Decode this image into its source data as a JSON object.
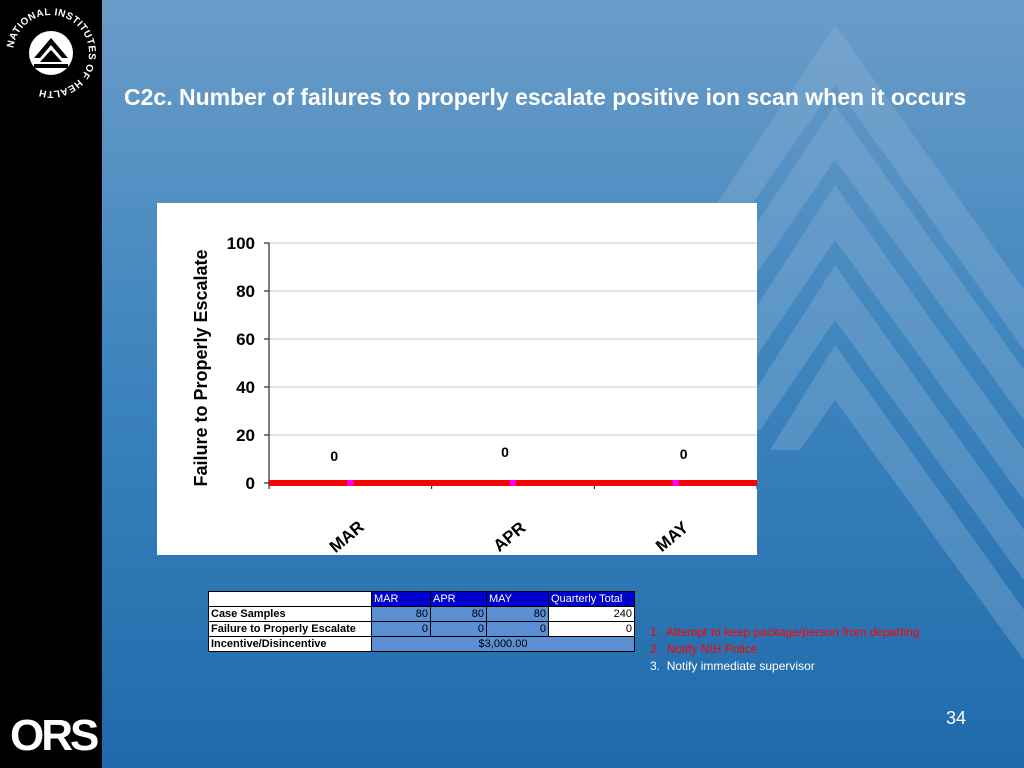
{
  "logo": {
    "nih_text": "NATIONAL INSTITUTES OF HEALTH",
    "ors_text": "ORS"
  },
  "title": "C2c. Number of failures to properly escalate positive ion scan when it occurs",
  "chart_data": {
    "type": "line",
    "categories": [
      "MAR",
      "APR",
      "MAY"
    ],
    "series": [
      {
        "values": [
          0,
          0,
          0
        ],
        "color": "#ff0000"
      }
    ],
    "data_labels": [
      "0",
      "0",
      "0"
    ],
    "ylabel": "Failure to Properly Escalate",
    "xlabel": "",
    "ylim": [
      0,
      100
    ],
    "yticks": [
      0,
      20,
      40,
      60,
      80,
      100
    ],
    "grid": true
  },
  "table": {
    "headers": [
      "MAR",
      "APR",
      "MAY",
      "Quarterly Total"
    ],
    "rows": [
      {
        "label": "Case Samples",
        "values": [
          "80",
          "80",
          "80"
        ],
        "total": "240"
      },
      {
        "label": "Failure to Properly Escalate",
        "values": [
          "0",
          "0",
          "0"
        ],
        "total": "0"
      }
    ],
    "incentive": {
      "label": "Incentive/Disincentive",
      "value": "$3,000.00"
    }
  },
  "notes": [
    {
      "num": "1.",
      "text": "Attempt to keep package/person from departing",
      "color": "red"
    },
    {
      "num": "2.",
      "text": "Notify NIH Police",
      "color": "red"
    },
    {
      "num": "3.",
      "text": "Notify immediate supervisor",
      "color": "white"
    }
  ],
  "page_number": "34"
}
